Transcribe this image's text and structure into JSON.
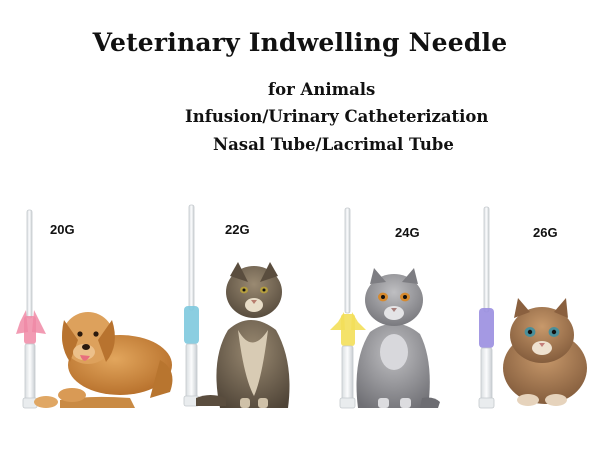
{
  "header": {
    "title": "Veterinary Indwelling Needle",
    "subtitle_lines": [
      "for Animals",
      "Infusion/Urinary Catheterization",
      "Nasal Tube/Lacrimal Tube"
    ]
  },
  "products": [
    {
      "gauge": "20G",
      "hub_color": "#f08aa6",
      "animal_icon": "dog-icon"
    },
    {
      "gauge": "22G",
      "hub_color": "#7ec9de",
      "animal_icon": "cat-icon"
    },
    {
      "gauge": "24G",
      "hub_color": "#f3df5a",
      "animal_icon": "cat-icon"
    },
    {
      "gauge": "26G",
      "hub_color": "#9a8ee0",
      "animal_icon": "kitten-icon"
    }
  ]
}
